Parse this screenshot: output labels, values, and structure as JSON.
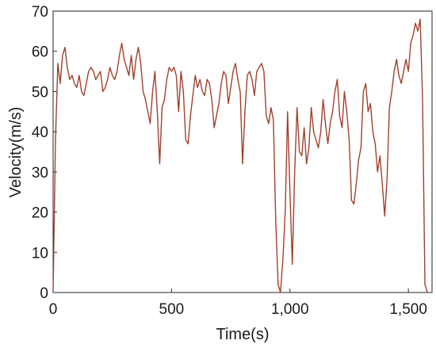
{
  "chart_data": {
    "type": "line",
    "xlabel": "Time(s)",
    "ylabel": "Velocity(m/s)",
    "xlim": [
      0,
      1600
    ],
    "ylim": [
      0,
      70
    ],
    "x_ticks": [
      0,
      500,
      1000,
      1500
    ],
    "x_tick_labels": [
      "0",
      "500",
      "1,000",
      "1,500"
    ],
    "y_ticks": [
      0,
      10,
      20,
      30,
      40,
      50,
      60,
      70
    ],
    "y_tick_labels": [
      "0",
      "10",
      "20",
      "30",
      "40",
      "50",
      "60",
      "70"
    ],
    "grid": false,
    "series": [
      {
        "color": "#a0412d",
        "x": [
          0,
          10,
          20,
          30,
          40,
          50,
          60,
          70,
          80,
          90,
          100,
          110,
          120,
          130,
          140,
          150,
          160,
          170,
          180,
          190,
          200,
          210,
          220,
          230,
          240,
          250,
          260,
          270,
          280,
          290,
          300,
          310,
          320,
          330,
          340,
          350,
          360,
          370,
          380,
          390,
          400,
          410,
          420,
          430,
          440,
          450,
          460,
          470,
          480,
          490,
          500,
          510,
          520,
          530,
          540,
          550,
          560,
          570,
          580,
          590,
          600,
          610,
          620,
          630,
          640,
          650,
          660,
          670,
          680,
          690,
          700,
          710,
          720,
          730,
          740,
          750,
          760,
          770,
          780,
          790,
          800,
          810,
          820,
          830,
          840,
          850,
          860,
          870,
          880,
          890,
          900,
          910,
          920,
          930,
          940,
          950,
          960,
          970,
          980,
          990,
          1000,
          1010,
          1020,
          1030,
          1040,
          1050,
          1060,
          1070,
          1080,
          1090,
          1100,
          1110,
          1120,
          1130,
          1140,
          1150,
          1160,
          1170,
          1180,
          1190,
          1200,
          1210,
          1220,
          1230,
          1240,
          1250,
          1260,
          1270,
          1280,
          1290,
          1300,
          1310,
          1320,
          1330,
          1340,
          1350,
          1360,
          1370,
          1380,
          1390,
          1400,
          1410,
          1420,
          1430,
          1440,
          1450,
          1460,
          1470,
          1480,
          1490,
          1500,
          1510,
          1520,
          1530,
          1540,
          1550,
          1560,
          1570,
          1580
        ],
        "y": [
          0,
          38,
          57,
          52,
          59,
          61,
          56,
          53,
          54,
          52,
          51,
          54,
          50,
          49,
          52,
          55,
          56,
          55,
          53,
          54,
          55,
          50,
          51,
          53,
          56,
          54,
          53,
          55,
          59,
          62,
          58,
          56,
          54,
          59,
          53,
          58,
          61,
          57,
          50,
          48,
          45,
          42,
          50,
          55,
          45,
          32,
          46,
          48,
          53,
          56,
          55,
          56,
          54,
          45,
          55,
          50,
          38,
          37,
          44,
          49,
          54,
          51,
          53,
          50,
          49,
          53,
          52,
          48,
          41,
          44,
          47,
          52,
          55,
          54,
          47,
          51,
          55,
          57,
          53,
          50,
          32,
          45,
          54,
          55,
          53,
          49,
          55,
          56,
          57,
          55,
          44,
          42,
          46,
          43,
          18,
          2,
          0,
          8,
          20,
          45,
          25,
          7,
          30,
          46,
          35,
          34,
          41,
          32,
          36,
          46,
          40,
          38,
          36,
          40,
          48,
          42,
          37,
          42,
          45,
          50,
          53,
          44,
          41,
          50,
          45,
          38,
          23,
          22,
          27,
          33,
          36,
          50,
          52,
          45,
          47,
          40,
          37,
          30,
          34,
          27,
          19,
          28,
          46,
          50,
          55,
          58,
          54,
          52,
          55,
          58,
          55,
          62,
          64,
          67,
          65,
          68,
          48,
          2,
          0
        ]
      }
    ]
  }
}
